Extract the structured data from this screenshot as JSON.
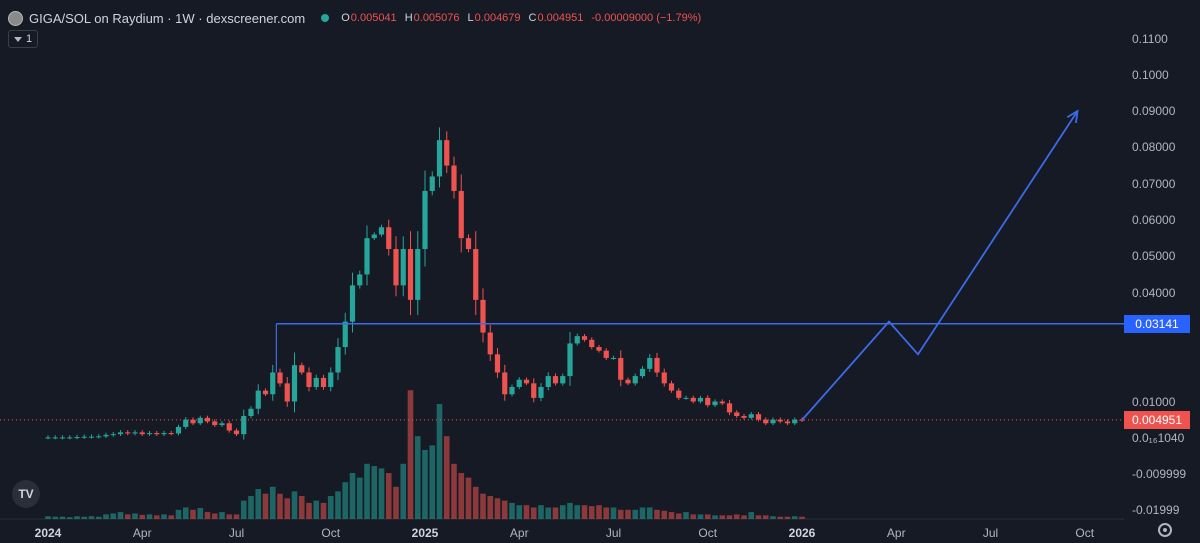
{
  "header": {
    "title": "GIGA/SOL on Raydium · 1W · dexscreener.com",
    "ohlc": [
      {
        "key": "O",
        "value": "0.005041"
      },
      {
        "key": "H",
        "value": "0.005076"
      },
      {
        "key": "L",
        "value": "0.004679"
      },
      {
        "key": "C",
        "value": "0.004951"
      },
      {
        "key": "",
        "value": "-0.00009000 (−1.79%)"
      }
    ],
    "indicator_count": "1"
  },
  "y_axis_labels": [
    "0.1100",
    "0.1000",
    "0.09000",
    "0.08000",
    "0.07000",
    "0.06000",
    "0.05000",
    "0.04000",
    "0.01000",
    "0.0₁₆1040",
    "-0.009999",
    "-0.01999"
  ],
  "y_axis_values": [
    0.11,
    0.1,
    0.09,
    0.08,
    0.07,
    0.06,
    0.05,
    0.04,
    0.01,
    0,
    -0.01,
    -0.02
  ],
  "x_axis_labels": [
    "2024",
    "Apr",
    "Jul",
    "Oct",
    "2025",
    "Apr",
    "Jul",
    "Oct",
    "2026",
    "Apr",
    "Jul",
    "Oct"
  ],
  "x_axis_bold": [
    true,
    false,
    false,
    false,
    true,
    false,
    false,
    false,
    true,
    false,
    false,
    false
  ],
  "tags": {
    "resistance": "0.03141",
    "last_price": "0.004951"
  },
  "branding": {
    "tv_logo": "TV"
  },
  "colors": {
    "up": "#26a69a",
    "down": "#ef5350",
    "drawing": "#3d6ae8",
    "background": "#161a25"
  },
  "chart_data": {
    "type": "candlestick",
    "x_unit": "week",
    "x_ticks": [
      {
        "label": "2024",
        "week": 0
      },
      {
        "label": "Apr",
        "week": 13
      },
      {
        "label": "Jul",
        "week": 26
      },
      {
        "label": "Oct",
        "week": 39
      },
      {
        "label": "2025",
        "week": 52
      },
      {
        "label": "Apr",
        "week": 65
      },
      {
        "label": "Jul",
        "week": 78
      },
      {
        "label": "Oct",
        "week": 91
      },
      {
        "label": "2026",
        "week": 104
      },
      {
        "label": "Apr",
        "week": 117
      },
      {
        "label": "Jul",
        "week": 130
      },
      {
        "label": "Oct",
        "week": 143
      }
    ],
    "ylim": [
      -0.02,
      0.115
    ],
    "close": [
      0.0001,
      0.0001,
      0.0001,
      0.0001,
      0.0002,
      0.0003,
      0.0003,
      0.0004,
      0.0008,
      0.001,
      0.0015,
      0.0012,
      0.0015,
      0.001,
      0.0013,
      0.001,
      0.0013,
      0.0012,
      0.003,
      0.005,
      0.004,
      0.0055,
      0.0045,
      0.0035,
      0.004,
      0.002,
      0.001,
      0.006,
      0.008,
      0.013,
      0.012,
      0.018,
      0.015,
      0.01,
      0.02,
      0.018,
      0.014,
      0.0165,
      0.014,
      0.018,
      0.025,
      0.032,
      0.042,
      0.045,
      0.055,
      0.056,
      0.058,
      0.052,
      0.042,
      0.052,
      0.038,
      0.052,
      0.068,
      0.072,
      0.082,
      0.075,
      0.068,
      0.055,
      0.052,
      0.038,
      0.029,
      0.023,
      0.018,
      0.012,
      0.014,
      0.016,
      0.015,
      0.011,
      0.014,
      0.017,
      0.015,
      0.017,
      0.026,
      0.028,
      0.027,
      0.025,
      0.024,
      0.022,
      0.022,
      0.016,
      0.015,
      0.017,
      0.019,
      0.022,
      0.018,
      0.015,
      0.013,
      0.011,
      0.011,
      0.01,
      0.011,
      0.009,
      0.01,
      0.0095,
      0.007,
      0.006,
      0.0055,
      0.0065,
      0.005,
      0.004,
      0.005,
      0.0045,
      0.004,
      0.005,
      0.0049
    ],
    "volume": [
      0.6,
      0.5,
      0.5,
      0.4,
      0.6,
      0.5,
      0.6,
      0.5,
      1.0,
      1.2,
      1.5,
      1.0,
      1.2,
      0.9,
      1.0,
      0.8,
      1.0,
      0.8,
      2.0,
      2.5,
      2.0,
      2.4,
      1.5,
      1.2,
      1.5,
      1.0,
      1.0,
      4.0,
      5.0,
      6.5,
      5.5,
      7.0,
      5.5,
      4.5,
      6.0,
      5.0,
      3.5,
      4.0,
      3.5,
      5.0,
      6.0,
      8.0,
      10.0,
      9.0,
      12.0,
      11.5,
      11.0,
      10.0,
      7.0,
      12.0,
      28.0,
      18.0,
      15.0,
      16.0,
      25.0,
      18.0,
      12.0,
      10.0,
      9.0,
      7.0,
      5.5,
      5.0,
      4.5,
      4.0,
      3.5,
      3.0,
      3.0,
      2.5,
      3.0,
      2.5,
      2.5,
      3.0,
      3.5,
      3.0,
      3.0,
      2.8,
      3.0,
      2.5,
      2.5,
      2.0,
      2.0,
      2.0,
      2.5,
      2.5,
      2.0,
      1.8,
      1.5,
      1.2,
      1.5,
      1.0,
      1.0,
      1.0,
      0.8,
      0.8,
      0.8,
      1.0,
      0.8,
      1.5,
      0.8,
      0.8,
      0.6,
      0.5,
      0.5,
      0.6,
      0.5
    ],
    "resistance_level": 0.03141,
    "last_price": 0.004951,
    "projection": [
      {
        "week": 104,
        "price": 0.0049
      },
      {
        "week": 116,
        "price": 0.032
      },
      {
        "week": 120,
        "price": 0.023
      },
      {
        "week": 142,
        "price": 0.09
      }
    ]
  }
}
